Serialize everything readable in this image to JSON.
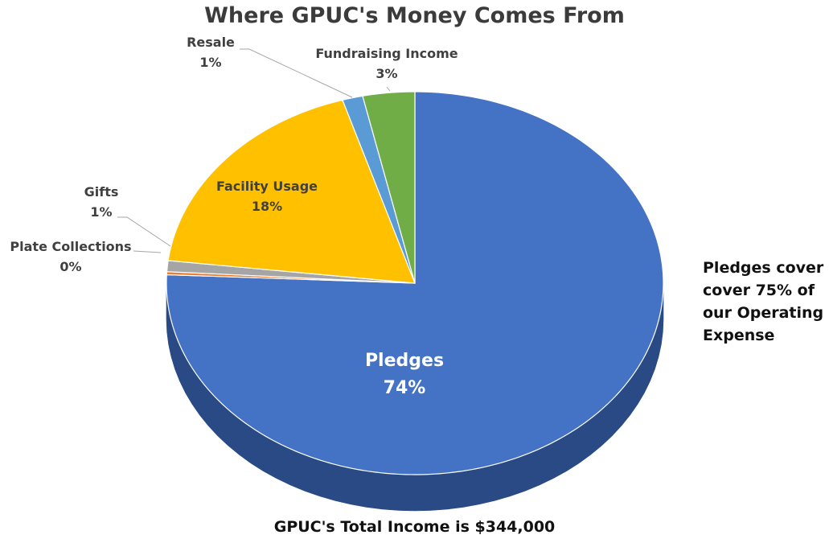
{
  "chart_data": {
    "type": "pie",
    "title": "Where GPUC's Money Comes From",
    "slices": [
      {
        "label": "Pledges",
        "value_label": "74%",
        "value": 74,
        "color": "#4472c4",
        "side_color": "#2a4a86"
      },
      {
        "label": "Plate Collections",
        "value_label": "0%",
        "value": 0.25,
        "color": "#ed7d31",
        "side_color": "#a1531d"
      },
      {
        "label": "Gifts",
        "value_label": "1%",
        "value": 0.9,
        "color": "#a5a5a5",
        "side_color": "#6b6b6b"
      },
      {
        "label": "Facility Usage",
        "value_label": "18%",
        "value": 18,
        "color": "#ffc000",
        "side_color": "#b08400"
      },
      {
        "label": "Resale",
        "value_label": "1%",
        "value": 1.3,
        "color": "#5b9bd5",
        "side_color": "#3a6a96"
      },
      {
        "label": "Fundraising Income",
        "value_label": "3%",
        "value": 3.3,
        "color": "#70ad47",
        "side_color": "#4b7a2e"
      }
    ],
    "annotations": {
      "side_note": [
        "Pledges cover",
        "cover 75% of",
        "our Operating",
        "Expense"
      ],
      "footer": "GPUC's Total Income is $344,000"
    }
  }
}
